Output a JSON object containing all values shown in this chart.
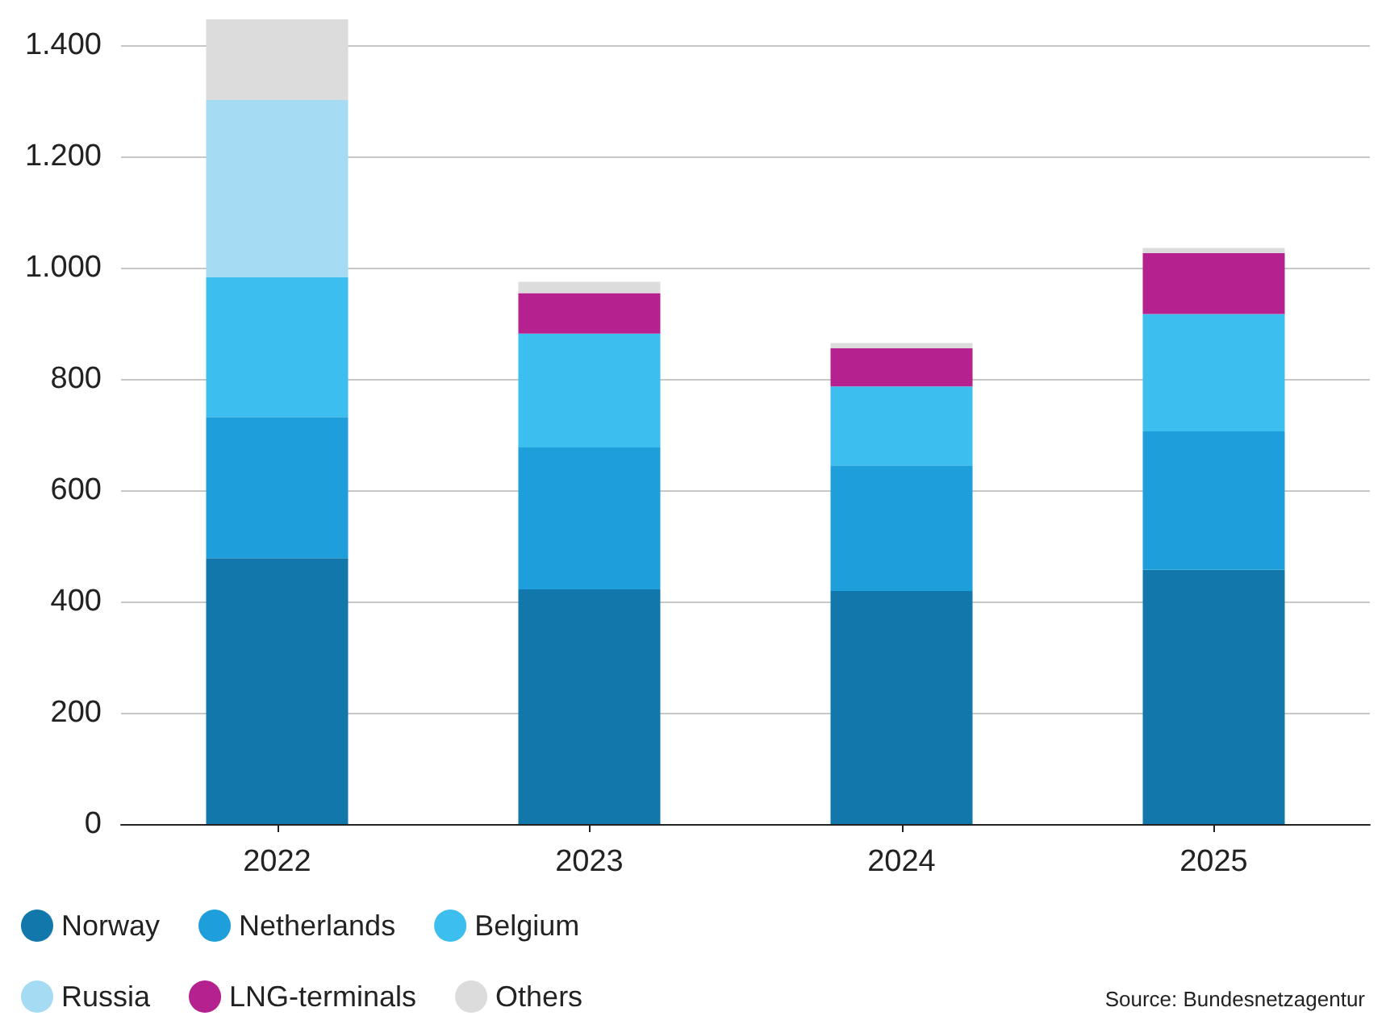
{
  "chart_data": {
    "type": "bar",
    "stacked": true,
    "categories": [
      "2022",
      "2023",
      "2024",
      "2025"
    ],
    "series": [
      {
        "name": "Norway",
        "color": "#1278ab",
        "values": [
          478,
          422,
          419,
          457
        ]
      },
      {
        "name": "Netherlands",
        "color": "#1e9fdb",
        "values": [
          254,
          255,
          226,
          249
        ]
      },
      {
        "name": "Belgium",
        "color": "#3cbeee",
        "values": [
          252,
          205,
          142,
          211
        ]
      },
      {
        "name": "Russia",
        "color": "#a5dcf3",
        "values": [
          318,
          null,
          null,
          null
        ]
      },
      {
        "name": "LNG-terminals",
        "color": "#b5218f",
        "values": [
          null,
          73,
          69,
          110
        ]
      },
      {
        "name": "Others",
        "color": "#dcdcdc",
        "values": [
          145,
          20,
          9,
          9
        ]
      }
    ],
    "ylim": [
      0,
      1450
    ],
    "yticks": [
      {
        "value": 0,
        "label": "0"
      },
      {
        "value": 200,
        "label": "200"
      },
      {
        "value": 400,
        "label": "400"
      },
      {
        "value": 600,
        "label": "600"
      },
      {
        "value": 800,
        "label": "800"
      },
      {
        "value": 1000,
        "label": "1.000"
      },
      {
        "value": 1200,
        "label": "1.200"
      },
      {
        "value": 1400,
        "label": "1.400"
      }
    ],
    "grid": "y",
    "legend": "bottom left",
    "annotations": [
      "Source: Bundesnetzagentur"
    ]
  }
}
